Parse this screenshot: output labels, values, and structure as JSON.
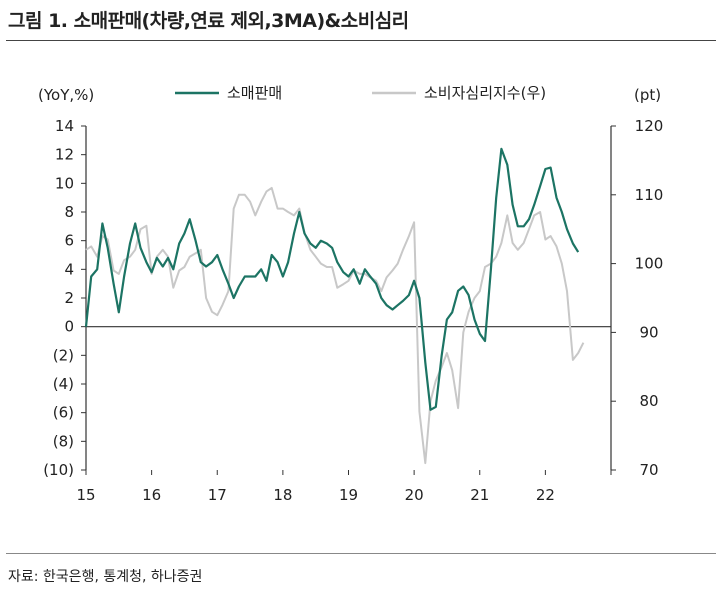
{
  "header": {
    "title": "그림 1. 소매판매(차량,연료 제외,3MA)&소비심리"
  },
  "footer": {
    "source": "자료: 한국은행, 통계청, 하나증권"
  },
  "chart_data": {
    "type": "line",
    "left_axis": {
      "unit_label": "(YoY,%)",
      "ylim": [
        -10,
        14
      ],
      "ticks": [
        14,
        12,
        10,
        8,
        6,
        4,
        2,
        0,
        -2,
        -4,
        -6,
        -8,
        -10
      ],
      "tick_labels": [
        "14",
        "12",
        "10",
        "8",
        "6",
        "4",
        "2",
        "0",
        "(2)",
        "(4)",
        "(6)",
        "(8)",
        "(10)"
      ]
    },
    "right_axis": {
      "unit_label": "(pt)",
      "ylim": [
        70,
        120
      ],
      "ticks": [
        120,
        110,
        100,
        90,
        80,
        70
      ],
      "tick_labels": [
        "120",
        "110",
        "100",
        "90",
        "80",
        "70"
      ]
    },
    "x_axis": {
      "xlim": [
        2015.0,
        2023.0
      ],
      "tick_labels": [
        "15",
        "16",
        "17",
        "18",
        "19",
        "20",
        "21",
        "22"
      ]
    },
    "legend_position": "top-center",
    "grid": false,
    "series": [
      {
        "name": "소매판매",
        "axis": "left",
        "color": "#1c7464",
        "x": [
          2015.0,
          2015.08,
          2015.17,
          2015.25,
          2015.33,
          2015.42,
          2015.5,
          2015.58,
          2015.67,
          2015.75,
          2015.83,
          2015.92,
          2016.0,
          2016.08,
          2016.17,
          2016.25,
          2016.33,
          2016.42,
          2016.5,
          2016.58,
          2016.67,
          2016.75,
          2016.83,
          2016.92,
          2017.0,
          2017.08,
          2017.17,
          2017.25,
          2017.33,
          2017.42,
          2017.5,
          2017.58,
          2017.67,
          2017.75,
          2017.83,
          2017.92,
          2018.0,
          2018.08,
          2018.17,
          2018.25,
          2018.33,
          2018.42,
          2018.5,
          2018.58,
          2018.67,
          2018.75,
          2018.83,
          2018.92,
          2019.0,
          2019.08,
          2019.17,
          2019.25,
          2019.33,
          2019.42,
          2019.5,
          2019.58,
          2019.67,
          2019.75,
          2019.83,
          2019.92,
          2020.0,
          2020.08,
          2020.17,
          2020.25,
          2020.33,
          2020.42,
          2020.5,
          2020.58,
          2020.67,
          2020.75,
          2020.83,
          2020.92,
          2021.0,
          2021.08,
          2021.17,
          2021.25,
          2021.33,
          2021.42,
          2021.5,
          2021.58,
          2021.67,
          2021.75,
          2021.83,
          2021.92,
          2022.0,
          2022.08,
          2022.17,
          2022.25,
          2022.33,
          2022.42,
          2022.5
        ],
        "values": [
          0.0,
          3.5,
          4.0,
          7.2,
          5.5,
          3.0,
          1.0,
          3.5,
          5.8,
          7.2,
          5.5,
          4.5,
          3.8,
          4.8,
          4.2,
          4.8,
          4.0,
          5.8,
          6.5,
          7.5,
          6.0,
          4.5,
          4.2,
          4.5,
          5.0,
          4.0,
          3.0,
          2.0,
          2.8,
          3.5,
          3.5,
          3.5,
          4.0,
          3.2,
          5.0,
          4.5,
          3.5,
          4.5,
          6.5,
          8.0,
          6.5,
          5.8,
          5.5,
          6.0,
          5.8,
          5.5,
          4.5,
          3.8,
          3.5,
          4.0,
          3.0,
          4.0,
          3.5,
          3.0,
          2.0,
          1.5,
          1.2,
          1.5,
          1.8,
          2.2,
          3.2,
          2.0,
          -2.5,
          -5.8,
          -5.6,
          -2.0,
          0.5,
          1.0,
          2.5,
          2.8,
          2.2,
          0.5,
          -0.5,
          -1.0,
          4.0,
          9.0,
          12.4,
          11.3,
          8.5,
          7.0,
          7.0,
          7.5,
          8.5,
          9.8,
          11.0,
          11.1,
          9.0,
          8.0,
          6.8,
          5.8,
          5.2
        ]
      },
      {
        "name": "소비자심리지수(우)",
        "axis": "right",
        "color": "#c8c8c8",
        "x": [
          2015.0,
          2015.08,
          2015.17,
          2015.25,
          2015.33,
          2015.42,
          2015.5,
          2015.58,
          2015.67,
          2015.75,
          2015.83,
          2015.92,
          2016.0,
          2016.08,
          2016.17,
          2016.25,
          2016.33,
          2016.42,
          2016.5,
          2016.58,
          2016.67,
          2016.75,
          2016.83,
          2016.92,
          2017.0,
          2017.08,
          2017.17,
          2017.25,
          2017.33,
          2017.42,
          2017.5,
          2017.58,
          2017.67,
          2017.75,
          2017.83,
          2017.92,
          2018.0,
          2018.08,
          2018.17,
          2018.25,
          2018.33,
          2018.42,
          2018.5,
          2018.58,
          2018.67,
          2018.75,
          2018.83,
          2018.92,
          2019.0,
          2019.08,
          2019.17,
          2019.25,
          2019.33,
          2019.42,
          2019.5,
          2019.58,
          2019.67,
          2019.75,
          2019.83,
          2019.92,
          2020.0,
          2020.08,
          2020.17,
          2020.25,
          2020.33,
          2020.42,
          2020.5,
          2020.58,
          2020.67,
          2020.75,
          2020.83,
          2020.92,
          2021.0,
          2021.08,
          2021.17,
          2021.25,
          2021.33,
          2021.42,
          2021.5,
          2021.58,
          2021.67,
          2021.75,
          2021.83,
          2021.92,
          2022.0,
          2022.08,
          2022.17,
          2022.25,
          2022.33,
          2022.42,
          2022.5,
          2022.58
        ],
        "x_note": "",
        "values": [
          102,
          102.5,
          101,
          104,
          103.5,
          99,
          98.5,
          100.5,
          101,
          102,
          105,
          105.5,
          98.5,
          101,
          102,
          101,
          96.5,
          99,
          99.5,
          101,
          101.5,
          102,
          95,
          93,
          92.5,
          94,
          96,
          108,
          110,
          110,
          109,
          107,
          109,
          110.5,
          111,
          108,
          108,
          107.5,
          107,
          108,
          104.5,
          102,
          101,
          100,
          99.5,
          99.5,
          96.5,
          97,
          97.5,
          99,
          98.5,
          98.5,
          98,
          97.5,
          96,
          98,
          99,
          100,
          102,
          104,
          106,
          78.5,
          71,
          80,
          83,
          85,
          87,
          84.5,
          79,
          90,
          93,
          95,
          96,
          99.5,
          100,
          101,
          103,
          107,
          103,
          102,
          103,
          105,
          107,
          107.5,
          103.5,
          104,
          102.5,
          100,
          96,
          86,
          87,
          88.5
        ]
      }
    ]
  }
}
